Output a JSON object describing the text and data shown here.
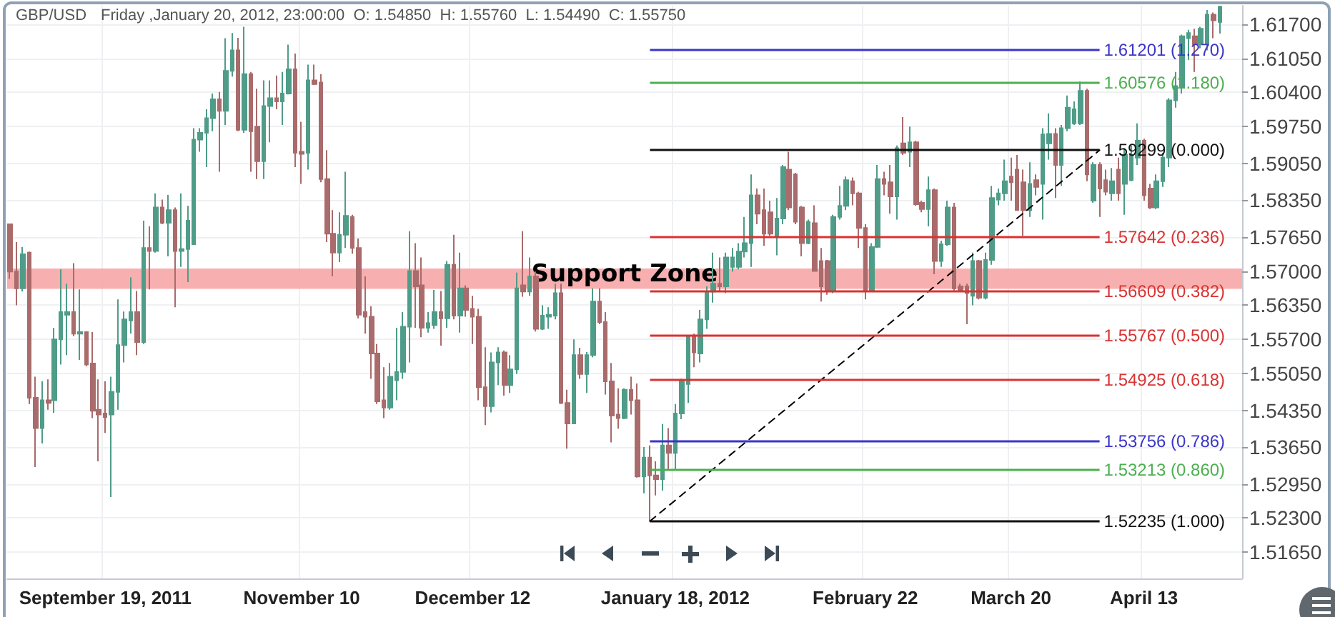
{
  "chart_data": {
    "type": "candlestick",
    "title": "GBP/USD",
    "subtitle": "Friday ,January 20, 2012, 23:00:00  O: 1.54850  H: 1.55760  L: 1.54490  C: 1.55750",
    "categories": [
      null,
      null,
      null,
      null,
      null,
      null,
      null,
      null,
      null,
      null,
      null,
      null,
      null,
      null,
      null,
      "September 19, 2011",
      null,
      null,
      null,
      null,
      null,
      null,
      null,
      null,
      null,
      null,
      null,
      null,
      null,
      null,
      null,
      null,
      null,
      null,
      null,
      null,
      null,
      null,
      null,
      null,
      null,
      null,
      null,
      null,
      null,
      null,
      "November 10",
      null,
      null,
      null,
      null,
      null,
      null,
      null,
      null,
      null,
      null,
      null,
      null,
      null,
      null,
      null,
      null,
      null,
      null,
      null,
      null,
      null,
      null,
      null,
      null,
      null,
      null,
      "December 12",
      null,
      null,
      null,
      null,
      null,
      null,
      null,
      null,
      null,
      null,
      null,
      null,
      null,
      null,
      null,
      null,
      null,
      null,
      null,
      null,
      null,
      null,
      null,
      null,
      null,
      null,
      null,
      null,
      null,
      null,
      null,
      "January 18, 2012",
      null,
      null,
      null,
      null,
      null,
      null,
      null,
      null,
      null,
      null,
      null,
      null,
      null,
      null,
      null,
      null,
      null,
      null,
      null,
      null,
      null,
      null,
      null,
      null,
      null,
      null,
      null,
      null,
      null,
      "February 22",
      null,
      null,
      null,
      null,
      null,
      null,
      null,
      null,
      null,
      null,
      null,
      null,
      null,
      null,
      null,
      null,
      null,
      null,
      null,
      null,
      null,
      null,
      "March 20",
      null,
      null,
      null,
      null,
      null,
      null,
      null,
      null,
      null,
      null,
      null,
      null,
      null,
      null,
      null,
      null,
      null,
      null,
      null,
      null,
      "April 13",
      null,
      null,
      null,
      null,
      null,
      null,
      null,
      null,
      null,
      null,
      null,
      null,
      null,
      null,
      null
    ],
    "ohlc": [
      [
        1.5789,
        1.5789,
        1.5685,
        1.5699
      ],
      [
        1.5699,
        1.5755,
        1.5635,
        1.5667
      ],
      [
        1.5667,
        1.5746,
        1.5661,
        1.5732
      ],
      [
        1.5735,
        1.5737,
        1.5447,
        1.5459
      ],
      [
        1.5459,
        1.5499,
        1.5327,
        1.5401
      ],
      [
        1.5401,
        1.549,
        1.5372,
        1.5454
      ],
      [
        1.5454,
        1.5494,
        1.5436,
        1.5449
      ],
      [
        1.5454,
        1.5592,
        1.543,
        1.557
      ],
      [
        1.557,
        1.5703,
        1.5522,
        1.5622
      ],
      [
        1.5617,
        1.5676,
        1.554,
        1.5622
      ],
      [
        1.5622,
        1.5715,
        1.5576,
        1.5581
      ],
      [
        1.5581,
        1.5665,
        1.5531,
        1.5584
      ],
      [
        1.5584,
        1.5585,
        1.5519,
        1.5522
      ],
      [
        1.5524,
        1.5584,
        1.542,
        1.5434
      ],
      [
        1.5436,
        1.5494,
        1.5338,
        1.5427
      ],
      [
        1.5429,
        1.549,
        1.5392,
        1.5422
      ],
      [
        1.5427,
        1.5499,
        1.527,
        1.547
      ],
      [
        1.547,
        1.5646,
        1.5436,
        1.5559
      ],
      [
        1.5559,
        1.5623,
        1.5526,
        1.5608
      ],
      [
        1.5606,
        1.5688,
        1.5581,
        1.5622
      ],
      [
        1.5622,
        1.5662,
        1.554,
        1.5565
      ],
      [
        1.5565,
        1.5796,
        1.5561,
        1.5744
      ],
      [
        1.5744,
        1.5785,
        1.5665,
        1.5738
      ],
      [
        1.5738,
        1.5848,
        1.5735,
        1.5821
      ],
      [
        1.5821,
        1.5836,
        1.5789,
        1.5792
      ],
      [
        1.5792,
        1.5845,
        1.5728,
        1.5816
      ],
      [
        1.5816,
        1.5821,
        1.5631,
        1.5738
      ],
      [
        1.5738,
        1.5848,
        1.5708,
        1.5742
      ],
      [
        1.5742,
        1.5824,
        1.5679,
        1.5796
      ],
      [
        1.5751,
        1.5972,
        1.5751,
        1.595
      ],
      [
        1.595,
        1.5972,
        1.5927,
        1.5963
      ],
      [
        1.5963,
        1.6008,
        1.5898,
        1.5991
      ],
      [
        1.5991,
        1.6038,
        1.5966,
        1.6027
      ],
      [
        1.6027,
        1.6041,
        1.5889,
        1.6005
      ],
      [
        1.6005,
        1.6143,
        1.5978,
        1.6081
      ],
      [
        1.6081,
        1.6153,
        1.607,
        1.612
      ],
      [
        1.612,
        1.6144,
        1.5966,
        1.5969
      ],
      [
        1.5969,
        1.6165,
        1.5963,
        1.6075
      ],
      [
        1.6075,
        1.6079,
        1.5889,
        1.5966
      ],
      [
        1.5975,
        1.6047,
        1.5875,
        1.5909
      ],
      [
        1.5909,
        1.6063,
        1.5875,
        1.6014
      ],
      [
        1.6014,
        1.6063,
        1.5945,
        1.6029
      ],
      [
        1.6029,
        1.6072,
        1.6008,
        1.6023
      ],
      [
        1.6023,
        1.6079,
        1.5978,
        1.6038
      ],
      [
        1.6038,
        1.6131,
        1.6036,
        1.6084
      ],
      [
        1.6084,
        1.6114,
        1.5898,
        1.5925
      ],
      [
        1.5927,
        1.5984,
        1.5866,
        1.5923
      ],
      [
        1.5925,
        1.6093,
        1.5893,
        1.6063
      ],
      [
        1.6063,
        1.6093,
        1.6054,
        1.6056
      ],
      [
        1.6059,
        1.6075,
        1.5869,
        1.5875
      ],
      [
        1.5875,
        1.593,
        1.5755,
        1.5771
      ],
      [
        1.5771,
        1.5816,
        1.569,
        1.5735
      ],
      [
        1.5735,
        1.5812,
        1.5717,
        1.5769
      ],
      [
        1.5769,
        1.5889,
        1.5744,
        1.5805
      ],
      [
        1.5803,
        1.5807,
        1.5733,
        1.5744
      ],
      [
        1.5744,
        1.5762,
        1.561,
        1.5617
      ],
      [
        1.5622,
        1.569,
        1.5581,
        1.5613
      ],
      [
        1.5613,
        1.5633,
        1.5495,
        1.5543
      ],
      [
        1.5543,
        1.5561,
        1.5447,
        1.5452
      ],
      [
        1.5454,
        1.5517,
        1.542,
        1.544
      ],
      [
        1.544,
        1.5525,
        1.5436,
        1.5499
      ],
      [
        1.5492,
        1.5592,
        1.5454,
        1.5508
      ],
      [
        1.5508,
        1.5622,
        1.5495,
        1.5594
      ],
      [
        1.5594,
        1.5776,
        1.5526,
        1.57
      ],
      [
        1.57,
        1.5753,
        1.5592,
        1.5671
      ],
      [
        1.5673,
        1.5726,
        1.5574,
        1.5592
      ],
      [
        1.5592,
        1.5622,
        1.5583,
        1.5601
      ],
      [
        1.5597,
        1.5664,
        1.559,
        1.5622
      ],
      [
        1.5622,
        1.5662,
        1.5558,
        1.561
      ],
      [
        1.561,
        1.5719,
        1.5592,
        1.5712
      ],
      [
        1.5712,
        1.5769,
        1.5608,
        1.5615
      ],
      [
        1.5615,
        1.5735,
        1.5583,
        1.5667
      ],
      [
        1.5667,
        1.5673,
        1.5613,
        1.5626
      ],
      [
        1.5628,
        1.5653,
        1.5561,
        1.5613
      ],
      [
        1.5613,
        1.5628,
        1.5454,
        1.5479
      ],
      [
        1.5479,
        1.5555,
        1.5407,
        1.5443
      ],
      [
        1.5443,
        1.5545,
        1.5431,
        1.5526
      ],
      [
        1.5526,
        1.5555,
        1.5483,
        1.5545
      ],
      [
        1.5545,
        1.5549,
        1.5463,
        1.5483
      ],
      [
        1.5483,
        1.554,
        1.5468,
        1.5513
      ],
      [
        1.5513,
        1.5697,
        1.5504,
        1.5667
      ],
      [
        1.5673,
        1.5776,
        1.5651,
        1.5661
      ],
      [
        1.5661,
        1.5726,
        1.5653,
        1.569
      ],
      [
        1.569,
        1.5699,
        1.5585,
        1.559
      ],
      [
        1.559,
        1.5635,
        1.5588,
        1.5615
      ],
      [
        1.5613,
        1.5631,
        1.559,
        1.5617
      ],
      [
        1.5615,
        1.5676,
        1.5608,
        1.5658
      ],
      [
        1.5658,
        1.5676,
        1.5447,
        1.5449
      ],
      [
        1.5449,
        1.5474,
        1.5362,
        1.541
      ],
      [
        1.541,
        1.557,
        1.541,
        1.554
      ],
      [
        1.554,
        1.5554,
        1.5495,
        1.5504
      ],
      [
        1.5504,
        1.5546,
        1.5468,
        1.554
      ],
      [
        1.554,
        1.5667,
        1.5536,
        1.5642
      ],
      [
        1.5642,
        1.5667,
        1.5599,
        1.5603
      ],
      [
        1.5603,
        1.5622,
        1.5465,
        1.549
      ],
      [
        1.549,
        1.5525,
        1.5374,
        1.5425
      ],
      [
        1.5427,
        1.5477,
        1.54,
        1.542
      ],
      [
        1.542,
        1.5477,
        1.5418,
        1.5474
      ],
      [
        1.5474,
        1.5499,
        1.5427,
        1.5454
      ],
      [
        1.5454,
        1.5486,
        1.5307,
        1.5309
      ],
      [
        1.5309,
        1.5365,
        1.5277,
        1.5345
      ],
      [
        1.5345,
        1.5368,
        1.5224,
        1.5311
      ],
      [
        1.5311,
        1.5338,
        1.5273,
        1.5304
      ],
      [
        1.5304,
        1.5409,
        1.5282,
        1.5368
      ],
      [
        1.5368,
        1.5401,
        1.5323,
        1.5354
      ],
      [
        1.5354,
        1.5447,
        1.5323,
        1.5429
      ],
      [
        1.5429,
        1.5495,
        1.5418,
        1.549
      ],
      [
        1.5485,
        1.5576,
        1.5449,
        1.5575
      ],
      [
        1.5575,
        1.5581,
        1.5517,
        1.5545
      ],
      [
        1.5543,
        1.5626,
        1.5526,
        1.5608
      ],
      [
        1.5608,
        1.5671,
        1.559,
        1.5661
      ],
      [
        1.5661,
        1.5735,
        1.564,
        1.5676
      ],
      [
        1.5676,
        1.5726,
        1.5662,
        1.5671
      ],
      [
        1.5671,
        1.5735,
        1.5658,
        1.5726
      ],
      [
        1.5708,
        1.5744,
        1.5699,
        1.5726
      ],
      [
        1.5708,
        1.5753,
        1.5703,
        1.5737
      ],
      [
        1.5737,
        1.5803,
        1.5726,
        1.5753
      ],
      [
        1.5753,
        1.5884,
        1.5708,
        1.5844
      ],
      [
        1.5844,
        1.5857,
        1.5789,
        1.5809
      ],
      [
        1.5816,
        1.5857,
        1.5748,
        1.5771
      ],
      [
        1.5812,
        1.5834,
        1.5767,
        1.5771
      ],
      [
        1.5767,
        1.5839,
        1.573,
        1.58
      ],
      [
        1.58,
        1.5902,
        1.5789,
        1.5898
      ],
      [
        1.5893,
        1.5927,
        1.5816,
        1.5821
      ],
      [
        1.5884,
        1.5887,
        1.5789,
        1.5794
      ],
      [
        1.5821,
        1.5824,
        1.5728,
        1.5753
      ],
      [
        1.5753,
        1.5798,
        1.5751,
        1.5794
      ],
      [
        1.5791,
        1.5825,
        1.5699,
        1.57
      ],
      [
        1.5719,
        1.5744,
        1.5642,
        1.5671
      ],
      [
        1.5719,
        1.5721,
        1.5655,
        1.5662
      ],
      [
        1.5662,
        1.5807,
        1.5658,
        1.5803
      ],
      [
        1.5803,
        1.5862,
        1.5798,
        1.5824
      ],
      [
        1.5824,
        1.588,
        1.5816,
        1.5873
      ],
      [
        1.5871,
        1.5878,
        1.5825,
        1.5848
      ],
      [
        1.5848,
        1.5851,
        1.5744,
        1.5782
      ],
      [
        1.5782,
        1.5789,
        1.5646,
        1.5664
      ],
      [
        1.5664,
        1.5753,
        1.5662,
        1.5746
      ],
      [
        1.5746,
        1.5902,
        1.5744,
        1.5875
      ],
      [
        1.5875,
        1.5889,
        1.5844,
        1.5866
      ],
      [
        1.5869,
        1.5902,
        1.5809,
        1.5842
      ],
      [
        1.5842,
        1.5939,
        1.5798,
        1.5934
      ],
      [
        1.5943,
        1.5993,
        1.5921,
        1.5925
      ],
      [
        1.5927,
        1.5975,
        1.5898,
        1.5945
      ],
      [
        1.5945,
        1.5948,
        1.5824,
        1.5827
      ],
      [
        1.583,
        1.5834,
        1.5812,
        1.5818
      ],
      [
        1.5818,
        1.588,
        1.5785,
        1.5854
      ],
      [
        1.5854,
        1.5857,
        1.5694,
        1.5719
      ],
      [
        1.5719,
        1.5758,
        1.5708,
        1.5751
      ],
      [
        1.5751,
        1.5834,
        1.5748,
        1.5821
      ],
      [
        1.5821,
        1.583,
        1.5662,
        1.5667
      ],
      [
        1.5671,
        1.5676,
        1.5661,
        1.5664
      ],
      [
        1.5671,
        1.5676,
        1.5599,
        1.5658
      ],
      [
        1.5653,
        1.5735,
        1.5635,
        1.5719
      ],
      [
        1.5719,
        1.5721,
        1.5646,
        1.5649
      ],
      [
        1.5649,
        1.5735,
        1.5646,
        1.5721
      ],
      [
        1.5721,
        1.5862,
        1.5712,
        1.5839
      ],
      [
        1.5836,
        1.5857,
        1.5825,
        1.5848
      ],
      [
        1.5848,
        1.5912,
        1.5834,
        1.5871
      ],
      [
        1.588,
        1.5916,
        1.5834,
        1.5869
      ],
      [
        1.5893,
        1.5921,
        1.5815,
        1.5816
      ],
      [
        1.5869,
        1.5893,
        1.5767,
        1.5816
      ],
      [
        1.5816,
        1.5907,
        1.5803,
        1.5866
      ],
      [
        1.5873,
        1.5884,
        1.5844,
        1.586
      ],
      [
        1.5866,
        1.5972,
        1.5798,
        1.596
      ],
      [
        1.5943,
        1.6,
        1.5912,
        1.5961
      ],
      [
        1.5961,
        1.5972,
        1.5839,
        1.5902
      ],
      [
        1.5902,
        1.5978,
        1.5862,
        1.5972
      ],
      [
        1.5972,
        1.6034,
        1.5966,
        1.6011
      ],
      [
        1.5981,
        1.6023,
        1.5978,
        1.6008
      ],
      [
        1.5981,
        1.6061,
        1.5978,
        1.6043
      ],
      [
        1.6043,
        1.6047,
        1.5871,
        1.5884
      ],
      [
        1.5834,
        1.5907,
        1.583,
        1.5902
      ],
      [
        1.5902,
        1.5907,
        1.5803,
        1.5857
      ],
      [
        1.5873,
        1.5893,
        1.5844,
        1.5851
      ],
      [
        1.5848,
        1.5896,
        1.5834,
        1.5871
      ],
      [
        1.5893,
        1.5916,
        1.5834,
        1.5848
      ],
      [
        1.5866,
        1.5934,
        1.5807,
        1.5921
      ],
      [
        1.5873,
        1.5939,
        1.5871,
        1.5921
      ],
      [
        1.5916,
        1.5981,
        1.5902,
        1.5948
      ],
      [
        1.5948,
        1.5952,
        1.5834,
        1.5844
      ],
      [
        1.5857,
        1.5866,
        1.5818,
        1.5821
      ],
      [
        1.5821,
        1.5884,
        1.5818,
        1.5871
      ],
      [
        1.5871,
        1.5925,
        1.586,
        1.5916
      ],
      [
        1.5916,
        1.6029,
        1.5898,
        1.6025
      ],
      [
        1.6025,
        1.6079,
        1.6011,
        1.6052
      ],
      [
        1.605,
        1.615,
        1.6038,
        1.6147
      ],
      [
        1.6143,
        1.6159,
        1.6102,
        1.6153
      ],
      [
        1.6147,
        1.6161,
        1.6079,
        1.6132
      ],
      [
        1.6132,
        1.6165,
        1.6124,
        1.6161
      ],
      [
        1.6133,
        1.6197,
        1.612,
        1.6188
      ],
      [
        1.6188,
        1.6192,
        1.6143,
        1.6177
      ],
      [
        1.6174,
        1.6205,
        1.6152,
        1.6203
      ],
      null,
      null,
      null
    ],
    "colors": [
      "#a96b6b",
      "#a96b6b",
      "#4f9c88",
      "#a96b6b",
      "#a96b6b",
      "#4f9c88",
      "#a96b6b",
      "#4f9c88",
      "#4f9c88",
      "#4f9c88",
      "#a96b6b",
      "#4f9c88",
      "#a96b6b",
      "#a96b6b",
      "#a96b6b",
      "#a96b6b",
      "#4f9c88",
      "#4f9c88",
      "#4f9c88",
      "#4f9c88",
      "#a96b6b",
      "#4f9c88",
      "#a96b6b",
      "#4f9c88",
      "#a96b6b",
      "#4f9c88",
      "#a96b6b",
      "#4f9c88",
      "#4f9c88",
      "#4f9c88",
      "#4f9c88",
      "#4f9c88",
      "#4f9c88",
      "#a96b6b",
      "#4f9c88",
      "#4f9c88",
      "#a96b6b",
      "#4f9c88",
      "#a96b6b",
      "#a96b6b",
      "#4f9c88",
      "#4f9c88",
      "#a96b6b",
      "#4f9c88",
      "#4f9c88",
      "#a96b6b",
      "#a96b6b",
      "#4f9c88",
      "#a96b6b",
      "#a96b6b",
      "#a96b6b",
      "#a96b6b",
      "#4f9c88",
      "#4f9c88",
      "#a96b6b",
      "#a96b6b",
      "#a96b6b",
      "#a96b6b",
      "#a96b6b",
      "#a96b6b",
      "#4f9c88",
      "#4f9c88",
      "#4f9c88",
      "#4f9c88",
      "#a96b6b",
      "#a96b6b",
      "#4f9c88",
      "#4f9c88",
      "#a96b6b",
      "#4f9c88",
      "#a96b6b",
      "#4f9c88",
      "#a96b6b",
      "#a96b6b",
      "#a96b6b",
      "#a96b6b",
      "#4f9c88",
      "#4f9c88",
      "#a96b6b",
      "#4f9c88",
      "#4f9c88",
      "#a96b6b",
      "#4f9c88",
      "#a96b6b",
      "#4f9c88",
      "#4f9c88",
      "#4f9c88",
      "#a96b6b",
      "#a96b6b",
      "#4f9c88",
      "#a96b6b",
      "#4f9c88",
      "#4f9c88",
      "#a96b6b",
      "#a96b6b",
      "#a96b6b",
      "#a96b6b",
      "#4f9c88",
      "#a96b6b",
      "#a96b6b",
      "#4f9c88",
      "#a96b6b",
      "#a96b6b",
      "#4f9c88",
      "#a96b6b",
      "#4f9c88",
      "#4f9c88",
      "#4f9c88",
      "#a96b6b",
      "#4f9c88",
      "#4f9c88",
      "#4f9c88",
      "#a96b6b",
      "#4f9c88",
      "#4f9c88",
      "#4f9c88",
      "#4f9c88",
      "#4f9c88",
      "#a96b6b",
      "#a96b6b",
      "#a96b6b",
      "#4f9c88",
      "#4f9c88",
      "#a96b6b",
      "#a96b6b",
      "#a96b6b",
      "#4f9c88",
      "#a96b6b",
      "#a96b6b",
      "#a96b6b",
      "#4f9c88",
      "#4f9c88",
      "#4f9c88",
      "#a96b6b",
      "#a96b6b",
      "#a96b6b",
      "#4f9c88",
      "#4f9c88",
      "#a96b6b",
      "#a96b6b",
      "#4f9c88",
      "#a96b6b",
      "#4f9c88",
      "#a96b6b",
      "#a96b6b",
      "#4f9c88",
      "#a96b6b",
      "#4f9c88",
      "#4f9c88",
      "#a96b6b",
      "#a96b6b",
      "#a96b6b",
      "#4f9c88",
      "#a96b6b",
      "#4f9c88",
      "#4f9c88",
      "#4f9c88",
      "#4f9c88",
      "#a96b6b",
      "#a96b6b",
      "#a96b6b",
      "#4f9c88",
      "#a96b6b",
      "#4f9c88",
      "#4f9c88",
      "#a96b6b",
      "#4f9c88",
      "#4f9c88",
      "#4f9c88",
      "#4f9c88",
      "#a96b6b",
      "#4f9c88",
      "#a96b6b",
      "#a96b6b",
      "#4f9c88",
      "#a96b6b",
      "#4f9c88",
      "#4f9c88",
      "#4f9c88",
      "#a96b6b",
      "#a96b6b",
      "#4f9c88",
      "#4f9c88",
      "#4f9c88",
      "#4f9c88",
      "#4f9c88",
      "#4f9c88",
      "#a96b6b",
      "#4f9c88",
      "#4f9c88",
      "#a96b6b",
      "#4f9c88",
      null,
      null,
      null
    ],
    "series": [
      {
        "type": "line",
        "color": "#000000",
        "line_style": "dashed",
        "values": [
          null,
          null,
          null,
          null,
          null,
          null,
          null,
          null,
          null,
          null,
          null,
          null,
          null,
          null,
          null,
          null,
          null,
          null,
          null,
          null,
          null,
          null,
          null,
          null,
          null,
          null,
          null,
          null,
          null,
          null,
          null,
          null,
          null,
          null,
          null,
          null,
          null,
          null,
          null,
          null,
          null,
          null,
          null,
          null,
          null,
          null,
          null,
          null,
          null,
          null,
          null,
          null,
          null,
          null,
          null,
          null,
          null,
          null,
          null,
          null,
          null,
          null,
          null,
          null,
          null,
          null,
          null,
          null,
          null,
          null,
          null,
          null,
          null,
          null,
          null,
          null,
          null,
          null,
          null,
          null,
          null,
          null,
          null,
          null,
          null,
          null,
          null,
          null,
          null,
          null,
          null,
          null,
          null,
          null,
          null,
          null,
          null,
          null,
          null,
          null,
          null,
          1.5224,
          null,
          null,
          null,
          null,
          null,
          null,
          null,
          null,
          null,
          null,
          null,
          null,
          null,
          null,
          null,
          null,
          null,
          null,
          null,
          null,
          null,
          null,
          null,
          null,
          null,
          null,
          null,
          null,
          null,
          null,
          null,
          null,
          null,
          null,
          null,
          null,
          null,
          null,
          null,
          null,
          null,
          null,
          null,
          null,
          null,
          null,
          null,
          null,
          null,
          null,
          null,
          null,
          null,
          null,
          null,
          null,
          null,
          null,
          null,
          null,
          null,
          null,
          null,
          null,
          null,
          null,
          null,
          null,
          null,
          null,
          1.593,
          null,
          null,
          null,
          null,
          null,
          null,
          null,
          null,
          null,
          null,
          null,
          null,
          null,
          null,
          null,
          null,
          null,
          null,
          null,
          null,
          null,
          null
        ]
      }
    ],
    "ref_lines": [
      {
        "axis": "y",
        "value": 1.61201,
        "label": "1.61201 (1.270)",
        "color": "#3b35c9"
      },
      {
        "axis": "y",
        "value": 1.60576,
        "label": "1.60576 (1.180)",
        "color": "#4caf50"
      },
      {
        "axis": "y",
        "value": 1.59299,
        "label": "1.59299 (0.000)",
        "color": "#111111"
      },
      {
        "axis": "y",
        "value": 1.57642,
        "label": "1.57642 (0.236)",
        "color": "#d93333"
      },
      {
        "axis": "y",
        "value": 1.56609,
        "label": "1.56609 (0.382)",
        "color": "#d93333"
      },
      {
        "axis": "y",
        "value": 1.55767,
        "label": "1.55767 (0.500)",
        "color": "#d93333"
      },
      {
        "axis": "y",
        "value": 1.54925,
        "label": "1.54925 (0.618)",
        "color": "#d93333"
      },
      {
        "axis": "y",
        "value": 1.53756,
        "label": "1.53756 (0.786)",
        "color": "#3b35c9"
      },
      {
        "axis": "y",
        "value": 1.53213,
        "label": "1.53213 (0.860)",
        "color": "#4caf50"
      },
      {
        "axis": "y",
        "value": 1.52235,
        "label": "1.52235 (1.000)",
        "color": "#111111"
      }
    ],
    "bands": [
      {
        "axis": "y",
        "from": 1.5666,
        "to": 1.5705,
        "label": "Support Zone",
        "color": "#f7a6a6"
      }
    ],
    "ylim": [
      1.5115,
      1.6205
    ],
    "yticks": [
      {
        "value": 1.617,
        "label": "1.61700"
      },
      {
        "value": 1.6105,
        "label": "1.61050"
      },
      {
        "value": 1.604,
        "label": "1.60400"
      },
      {
        "value": 1.5975,
        "label": "1.59750"
      },
      {
        "value": 1.5905,
        "label": "1.59050"
      },
      {
        "value": 1.5835,
        "label": "1.58350"
      },
      {
        "value": 1.5765,
        "label": "1.57650"
      },
      {
        "value": 1.57,
        "label": "1.57000"
      },
      {
        "value": 1.5635,
        "label": "1.56350"
      },
      {
        "value": 1.557,
        "label": "1.55700"
      },
      {
        "value": 1.5505,
        "label": "1.55050"
      },
      {
        "value": 1.5435,
        "label": "1.54350"
      },
      {
        "value": 1.5365,
        "label": "1.53650"
      },
      {
        "value": 1.5295,
        "label": "1.52950"
      },
      {
        "value": 1.523,
        "label": "1.52300"
      },
      {
        "value": 1.5165,
        "label": "1.51650"
      }
    ],
    "grid": true
  }
}
